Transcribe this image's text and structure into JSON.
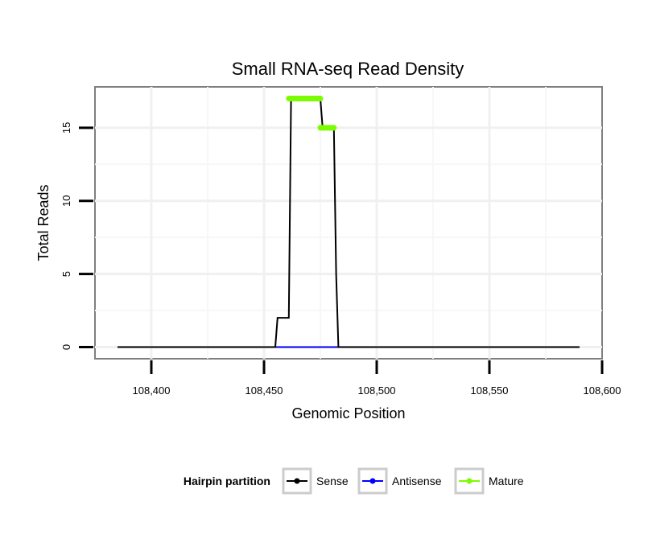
{
  "chart_data": {
    "type": "line",
    "title": "Small RNA-seq Read Density",
    "xlabel": "Genomic Position",
    "ylabel": "Total Reads",
    "xlim": [
      108375,
      108600
    ],
    "ylim": [
      -0.8,
      17.8
    ],
    "x_ticks": [
      {
        "value": 108400,
        "label": "108,400"
      },
      {
        "value": 108450,
        "label": "108,450"
      },
      {
        "value": 108500,
        "label": "108,500"
      },
      {
        "value": 108550,
        "label": "108,550"
      },
      {
        "value": 108600,
        "label": "108,600"
      }
    ],
    "y_ticks": [
      {
        "value": 0,
        "label": "0"
      },
      {
        "value": 5,
        "label": "5"
      },
      {
        "value": 10,
        "label": "10"
      },
      {
        "value": 15,
        "label": "15"
      }
    ],
    "grid": true,
    "series": [
      {
        "name": "Sense",
        "color": "#000000",
        "x": [
          108385,
          108455,
          108456,
          108461,
          108462,
          108475,
          108476,
          108481,
          108482,
          108483,
          108590
        ],
        "y": [
          0,
          0,
          2,
          2,
          17,
          17,
          15,
          15,
          5,
          0,
          0
        ]
      },
      {
        "name": "Antisense",
        "color": "#0000ff",
        "x": [
          108455,
          108483
        ],
        "y": [
          0,
          0
        ]
      }
    ],
    "mature_segments": [
      {
        "name": "Mature",
        "color": "#7cfc00",
        "x_start": 108461,
        "x_end": 108475,
        "y": 17
      },
      {
        "name": "Mature",
        "color": "#7cfc00",
        "x_start": 108475,
        "x_end": 108481,
        "y": 15
      }
    ],
    "legend": {
      "position": "bottom",
      "title": "Hairpin partition",
      "items": [
        {
          "label": "Sense",
          "color": "#000000"
        },
        {
          "label": "Antisense",
          "color": "#0000ff"
        },
        {
          "label": "Mature",
          "color": "#7cfc00"
        }
      ]
    }
  }
}
